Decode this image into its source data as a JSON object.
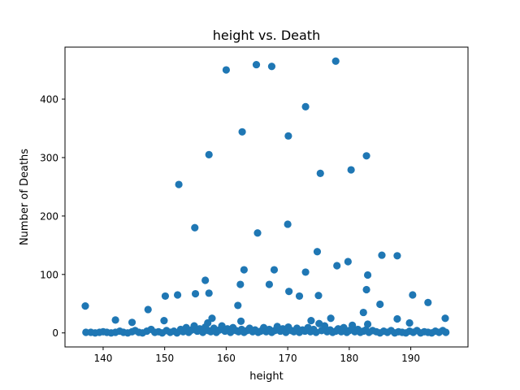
{
  "chart_data": {
    "type": "scatter",
    "title": "height vs. Death",
    "xlabel": "height",
    "ylabel": "Number of Deaths",
    "xlim": [
      133.8,
      199.3
    ],
    "ylim": [
      -24,
      489
    ],
    "xticks": [
      140,
      150,
      160,
      170,
      180,
      190
    ],
    "yticks": [
      0,
      100,
      200,
      300,
      400
    ],
    "grid": false,
    "legend": "none",
    "marker_color": "#1f77b4",
    "series": [
      {
        "points": [
          [
            137.1,
            46
          ],
          [
            142.0,
            22
          ],
          [
            144.7,
            18
          ],
          [
            147.3,
            40
          ],
          [
            149.9,
            21
          ],
          [
            150.1,
            63
          ],
          [
            152.1,
            65
          ],
          [
            152.3,
            254
          ],
          [
            154.9,
            180
          ],
          [
            155.0,
            67
          ],
          [
            156.6,
            90
          ],
          [
            157.2,
            305
          ],
          [
            157.2,
            68
          ],
          [
            157.7,
            25
          ],
          [
            157.0,
            17
          ],
          [
            160.0,
            450
          ],
          [
            161.9,
            47
          ],
          [
            162.3,
            83
          ],
          [
            162.6,
            344
          ],
          [
            162.9,
            108
          ],
          [
            162.4,
            20
          ],
          [
            164.9,
            459
          ],
          [
            165.1,
            171
          ],
          [
            167.0,
            83
          ],
          [
            167.4,
            456
          ],
          [
            167.8,
            108
          ],
          [
            170.1,
            337
          ],
          [
            170.0,
            186
          ],
          [
            170.2,
            71
          ],
          [
            171.9,
            63
          ],
          [
            172.9,
            387
          ],
          [
            172.9,
            104
          ],
          [
            173.8,
            21
          ],
          [
            174.8,
            139
          ],
          [
            175.0,
            64
          ],
          [
            175.3,
            273
          ],
          [
            177.0,
            25
          ],
          [
            177.8,
            465
          ],
          [
            178.0,
            115
          ],
          [
            179.8,
            122
          ],
          [
            180.3,
            279
          ],
          [
            182.3,
            35
          ],
          [
            182.8,
            303
          ],
          [
            182.8,
            74
          ],
          [
            183.0,
            99
          ],
          [
            183.0,
            15
          ],
          [
            185.0,
            49
          ],
          [
            185.3,
            133
          ],
          [
            187.8,
            132
          ],
          [
            187.8,
            24
          ],
          [
            190.3,
            65
          ],
          [
            189.8,
            17
          ],
          [
            192.8,
            52
          ],
          [
            195.6,
            25
          ],
          [
            137.2,
            1
          ],
          [
            138.0,
            1
          ],
          [
            138.7,
            0
          ],
          [
            139.4,
            1
          ],
          [
            140.0,
            2
          ],
          [
            140.6,
            1
          ],
          [
            141.3,
            0
          ],
          [
            142.0,
            1
          ],
          [
            142.7,
            3
          ],
          [
            143.3,
            1
          ],
          [
            144.0,
            0
          ],
          [
            144.7,
            2
          ],
          [
            145.2,
            4
          ],
          [
            145.8,
            1
          ],
          [
            146.4,
            0
          ],
          [
            147.1,
            3
          ],
          [
            147.8,
            6
          ],
          [
            148.4,
            1
          ],
          [
            149.0,
            2
          ],
          [
            149.6,
            0
          ],
          [
            150.3,
            4
          ],
          [
            150.9,
            1
          ],
          [
            151.5,
            3
          ],
          [
            152.0,
            0
          ],
          [
            152.6,
            6
          ],
          [
            153.0,
            2
          ],
          [
            153.5,
            9
          ],
          [
            153.9,
            1
          ],
          [
            154.4,
            5
          ],
          [
            154.8,
            12
          ],
          [
            155.3,
            3
          ],
          [
            155.7,
            7
          ],
          [
            156.2,
            1
          ],
          [
            156.6,
            10
          ],
          [
            157.1,
            4
          ],
          [
            157.5,
            2
          ],
          [
            158.0,
            8
          ],
          [
            158.4,
            1
          ],
          [
            158.9,
            5
          ],
          [
            159.3,
            12
          ],
          [
            159.8,
            3
          ],
          [
            160.2,
            7
          ],
          [
            160.7,
            1
          ],
          [
            161.1,
            9
          ],
          [
            161.6,
            4
          ],
          [
            162.0,
            2
          ],
          [
            162.5,
            6
          ],
          [
            162.9,
            1
          ],
          [
            163.4,
            4
          ],
          [
            163.8,
            8
          ],
          [
            164.3,
            2
          ],
          [
            164.7,
            5
          ],
          [
            165.2,
            1
          ],
          [
            165.6,
            3
          ],
          [
            166.1,
            9
          ],
          [
            166.5,
            2
          ],
          [
            167.0,
            6
          ],
          [
            167.4,
            1
          ],
          [
            167.9,
            4
          ],
          [
            168.3,
            11
          ],
          [
            168.8,
            3
          ],
          [
            169.2,
            7
          ],
          [
            169.7,
            1
          ],
          [
            170.1,
            10
          ],
          [
            170.6,
            4
          ],
          [
            171.0,
            2
          ],
          [
            171.5,
            8
          ],
          [
            171.9,
            1
          ],
          [
            172.4,
            5
          ],
          [
            172.8,
            3
          ],
          [
            173.3,
            9
          ],
          [
            173.7,
            2
          ],
          [
            174.2,
            6
          ],
          [
            174.6,
            1
          ],
          [
            175.1,
            16
          ],
          [
            175.5,
            4
          ],
          [
            176.0,
            12
          ],
          [
            176.4,
            2
          ],
          [
            176.9,
            5
          ],
          [
            177.3,
            1
          ],
          [
            177.8,
            3
          ],
          [
            178.2,
            7
          ],
          [
            178.7,
            2
          ],
          [
            179.1,
            9
          ],
          [
            179.6,
            1
          ],
          [
            180.0,
            4
          ],
          [
            180.5,
            13
          ],
          [
            180.9,
            2
          ],
          [
            181.4,
            6
          ],
          [
            181.8,
            1
          ],
          [
            182.3,
            3
          ],
          [
            182.7,
            5
          ],
          [
            183.2,
            1
          ],
          [
            183.8,
            4
          ],
          [
            184.4,
            2
          ],
          [
            185.0,
            0
          ],
          [
            185.6,
            3
          ],
          [
            186.2,
            1
          ],
          [
            186.8,
            4
          ],
          [
            187.4,
            0
          ],
          [
            188.0,
            2
          ],
          [
            188.6,
            1
          ],
          [
            189.2,
            0
          ],
          [
            189.8,
            3
          ],
          [
            190.4,
            1
          ],
          [
            191.0,
            4
          ],
          [
            191.6,
            0
          ],
          [
            192.2,
            2
          ],
          [
            192.8,
            1
          ],
          [
            193.4,
            0
          ],
          [
            194.0,
            3
          ],
          [
            194.6,
            1
          ],
          [
            195.2,
            4
          ],
          [
            195.7,
            1
          ]
        ]
      }
    ]
  }
}
